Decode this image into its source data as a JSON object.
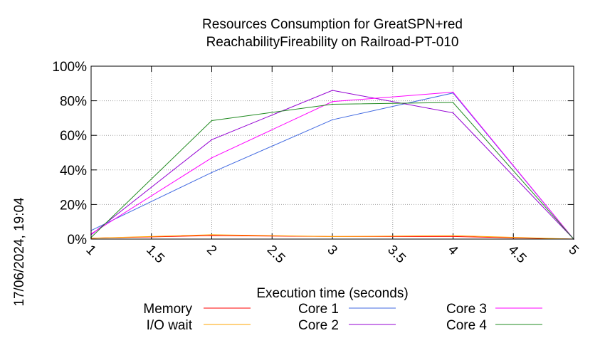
{
  "chart_data": {
    "type": "line",
    "title_line1": "Resources Consumption for GreatSPN+red",
    "title_line2": "ReachabilityFireability on Railroad-PT-010",
    "xlabel": "Execution time (seconds)",
    "ylabel": "",
    "timestamp": "17/06/2024, 19:04",
    "xlim": [
      1,
      5
    ],
    "ylim": [
      0,
      100
    ],
    "x_ticks": [
      {
        "value": 1,
        "label": "1"
      },
      {
        "value": 1.5,
        "label": "1.5"
      },
      {
        "value": 2,
        "label": "2"
      },
      {
        "value": 2.5,
        "label": "2.5"
      },
      {
        "value": 3,
        "label": "3"
      },
      {
        "value": 3.5,
        "label": "3.5"
      },
      {
        "value": 4,
        "label": "4"
      },
      {
        "value": 4.5,
        "label": "4.5"
      },
      {
        "value": 5,
        "label": "5"
      }
    ],
    "y_ticks": [
      {
        "value": 0,
        "label": "0%"
      },
      {
        "value": 20,
        "label": "20%"
      },
      {
        "value": 40,
        "label": "40%"
      },
      {
        "value": 60,
        "label": "60%"
      },
      {
        "value": 80,
        "label": "80%"
      },
      {
        "value": 100,
        "label": "100%"
      }
    ],
    "grid": true,
    "legend_position": "bottom",
    "x": [
      1,
      2,
      3,
      4,
      5
    ],
    "series": [
      {
        "name": "Memory",
        "color": "#ff0000",
        "values": [
          0.5,
          2.0,
          1.5,
          1.5,
          0
        ]
      },
      {
        "name": "I/O wait",
        "color": "#ffa500",
        "values": [
          0.5,
          2.5,
          1.5,
          2.0,
          0
        ]
      },
      {
        "name": "Core 1",
        "color": "#4169e1",
        "values": [
          5,
          38.5,
          69,
          84.5,
          0
        ]
      },
      {
        "name": "Core 2",
        "color": "#9400d3",
        "values": [
          2.5,
          57.5,
          86,
          73,
          0
        ]
      },
      {
        "name": "Core 3",
        "color": "#ff00ff",
        "values": [
          3,
          47,
          79.5,
          85,
          0
        ]
      },
      {
        "name": "Core 4",
        "color": "#228b22",
        "values": [
          1,
          68.5,
          78,
          79,
          0
        ]
      }
    ]
  }
}
